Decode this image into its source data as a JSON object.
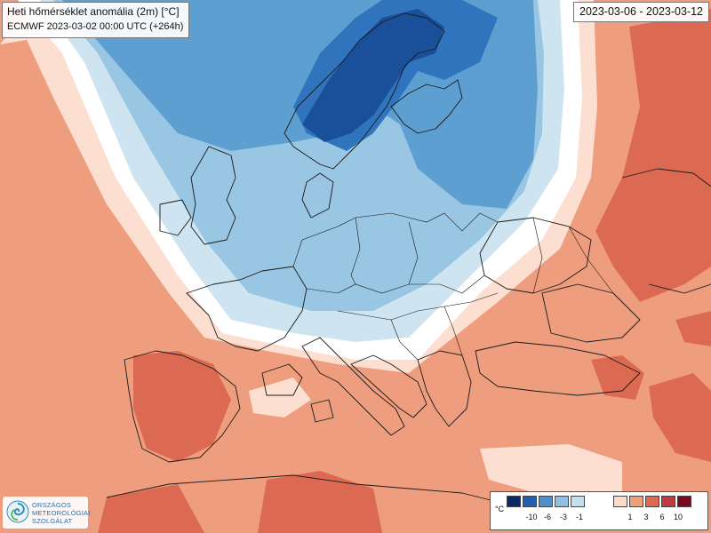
{
  "header": {
    "title": "Heti hőmérséklet anomália (2m) [°C]",
    "model_run": "ECMWF 2023-03-02 00:00 UTC (+264h)"
  },
  "period": "2023-03-06 - 2023-03-12",
  "logo": {
    "line1": "ORSZÁGOS",
    "line2": "METEOROLÓGIAI",
    "line3": "SZOLGÁLAT",
    "icon": "swirl-icon"
  },
  "legend": {
    "unit": "°C",
    "colors": {
      "cold": [
        "#0a2a66",
        "#1f5fb0",
        "#4e90cb",
        "#8fbfe2",
        "#c4def0"
      ],
      "warm": [
        "#fbdccb",
        "#f0a079",
        "#dd6a50",
        "#c03a3e",
        "#7a0a22"
      ]
    },
    "cold_ticks": [
      "-10",
      "-6",
      "-3",
      "-1"
    ],
    "warm_ticks": [
      "1",
      "3",
      "6",
      "10"
    ]
  },
  "colors": {
    "warm1": "#fcdfd0",
    "warm2": "#ee9e7e",
    "warm3": "#dc6a52",
    "cold1": "#cfe4f1",
    "cold2": "#99c6e3",
    "cold3": "#5e9fd1",
    "cold4": "#2f74bd",
    "cold5": "#1a4f9a"
  }
}
